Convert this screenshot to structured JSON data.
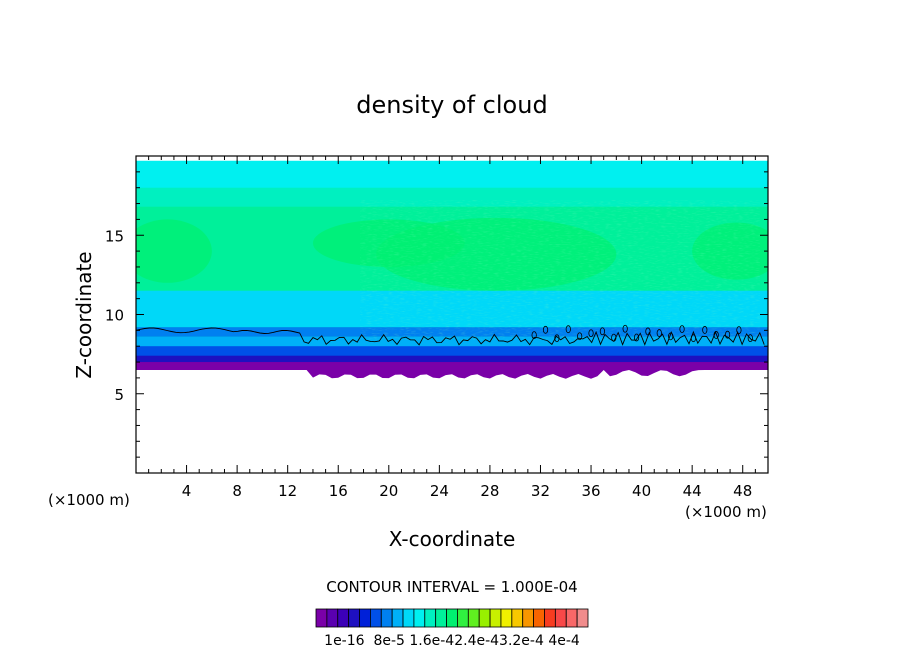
{
  "chart_data": {
    "type": "heatmap",
    "title": "density of cloud",
    "xlabel": "X-coordinate",
    "ylabel": "Z-coordinate",
    "x_unit": "(×1000 m)",
    "x_range": [
      0,
      50
    ],
    "y_range": [
      0,
      20
    ],
    "x_ticks": [
      4,
      8,
      12,
      16,
      20,
      24,
      28,
      32,
      36,
      40,
      44,
      48
    ],
    "y_ticks": [
      5,
      10,
      15
    ],
    "contour_interval_text": "CONTOUR INTERVAL = 1.000E-04",
    "colorbar_labels": [
      "1e-16",
      "8e-5",
      "1.6e-4",
      "2.4e-4",
      "3.2e-4",
      "4e-4"
    ],
    "colorbar_text": "1e-16  8e-5 1.6e-42.4e-43.2e-4 4e-4",
    "colorbar_colors": [
      "#7a00a8",
      "#5a00b0",
      "#3c00b8",
      "#1e10c0",
      "#0020d8",
      "#0050e8",
      "#0080f0",
      "#00b0f8",
      "#00d8f8",
      "#00f0f0",
      "#00f0c0",
      "#00f09a",
      "#00f070",
      "#30f040",
      "#60f020",
      "#98f000",
      "#c8f000",
      "#f0f000",
      "#f8c800",
      "#f89600",
      "#f86400",
      "#f83c20",
      "#f84848",
      "#f86868",
      "#f08c8c"
    ],
    "cloud_base_z_km": 6.5,
    "cloud_top_z_km": 19.7,
    "contour_line_z_km": 8.7
  }
}
